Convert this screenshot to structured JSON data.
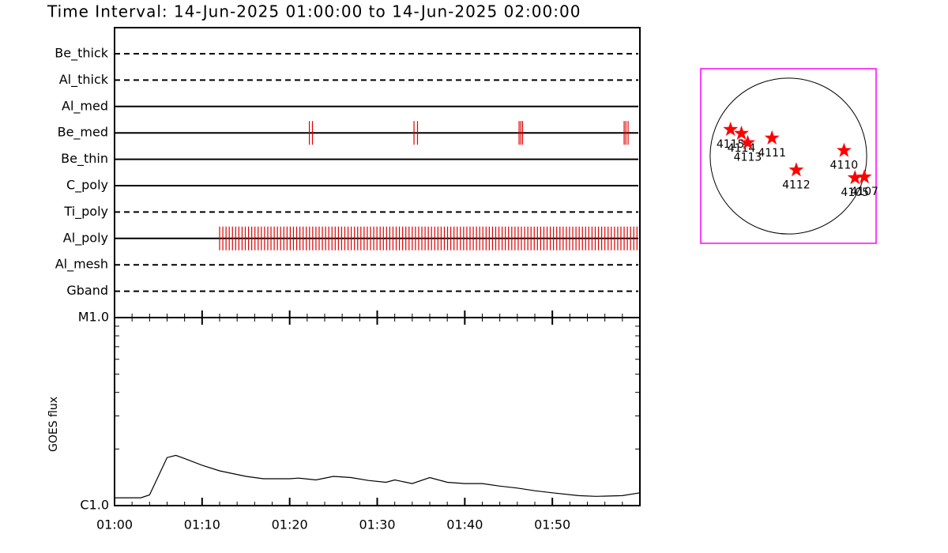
{
  "chart_data": [
    {
      "type": "timeline",
      "title": "Time Interval: 14-Jun-2025 01:00:00 to 14-Jun-2025 02:00:00",
      "xlim": [
        "01:00",
        "02:00"
      ],
      "event_color": "#dd0000",
      "rows": [
        {
          "name": "Be_thick",
          "line": "dashed"
        },
        {
          "name": "Al_thick",
          "line": "dashed"
        },
        {
          "name": "Al_med",
          "line": "solid"
        },
        {
          "name": "Be_med",
          "line": "solid",
          "events": [
            "01:22:15",
            "01:22:36",
            "01:34:12",
            "01:34:36",
            "01:46:12",
            "01:46:24",
            "01:46:36",
            "01:58:12",
            "01:58:24",
            "01:58:39"
          ]
        },
        {
          "name": "Be_thin",
          "line": "solid"
        },
        {
          "name": "C_poly",
          "line": "solid"
        },
        {
          "name": "Ti_poly",
          "line": "dashed"
        },
        {
          "name": "Al_poly",
          "line": "solid",
          "events": [
            "01:12:00",
            "01:12:22",
            "01:12:44",
            "01:13:06",
            "01:13:28",
            "01:13:50",
            "01:14:12",
            "01:14:34",
            "01:14:56",
            "01:15:18",
            "01:15:40",
            "01:16:02",
            "01:16:24",
            "01:16:46",
            "01:17:08",
            "01:17:30",
            "01:17:52",
            "01:18:14",
            "01:18:36",
            "01:18:58",
            "01:19:20",
            "01:19:42",
            "01:20:04",
            "01:20:26",
            "01:20:48",
            "01:21:10",
            "01:21:32",
            "01:21:54",
            "01:22:16",
            "01:22:38",
            "01:23:00",
            "01:23:22",
            "01:23:44",
            "01:24:06",
            "01:24:28",
            "01:24:50",
            "01:25:12",
            "01:25:34",
            "01:25:56",
            "01:26:18",
            "01:26:40",
            "01:27:02",
            "01:27:24",
            "01:27:46",
            "01:28:08",
            "01:28:30",
            "01:28:52",
            "01:29:14",
            "01:29:36",
            "01:29:58",
            "01:30:20",
            "01:30:42",
            "01:31:04",
            "01:31:26",
            "01:31:48",
            "01:32:10",
            "01:32:32",
            "01:32:54",
            "01:33:16",
            "01:33:38",
            "01:34:00",
            "01:34:22",
            "01:34:44",
            "01:35:06",
            "01:35:28",
            "01:35:50",
            "01:36:12",
            "01:36:34",
            "01:36:56",
            "01:37:18",
            "01:37:40",
            "01:38:02",
            "01:38:24",
            "01:38:46",
            "01:39:08",
            "01:39:30",
            "01:39:52",
            "01:40:14",
            "01:40:36",
            "01:40:58",
            "01:41:20",
            "01:41:42",
            "01:42:04",
            "01:42:26",
            "01:42:48",
            "01:43:10",
            "01:43:32",
            "01:43:54",
            "01:44:16",
            "01:44:38",
            "01:45:00",
            "01:45:22",
            "01:45:44",
            "01:46:06",
            "01:46:28",
            "01:46:50",
            "01:47:12",
            "01:47:34",
            "01:47:56",
            "01:48:18",
            "01:48:40",
            "01:49:02",
            "01:49:24",
            "01:49:46",
            "01:50:08",
            "01:50:30",
            "01:50:52",
            "01:51:14",
            "01:51:36",
            "01:51:58",
            "01:52:20",
            "01:52:42",
            "01:53:04",
            "01:53:26",
            "01:53:48",
            "01:54:10",
            "01:54:32",
            "01:54:54",
            "01:55:16",
            "01:55:38",
            "01:56:00",
            "01:56:22",
            "01:56:44",
            "01:57:06",
            "01:57:28",
            "01:57:50",
            "01:58:12",
            "01:58:34",
            "01:58:56",
            "01:59:18",
            "01:59:40"
          ]
        },
        {
          "name": "Al_mesh",
          "line": "dashed"
        },
        {
          "name": "Gband",
          "line": "dashed"
        }
      ]
    },
    {
      "type": "line",
      "ylabel": "GOES flux",
      "x": [
        "01:00",
        "01:03",
        "01:04",
        "01:06",
        "01:07",
        "01:08",
        "01:10",
        "01:12",
        "01:15",
        "01:17",
        "01:20",
        "01:21",
        "01:23",
        "01:25",
        "01:27",
        "01:29",
        "01:31",
        "01:32",
        "01:34",
        "01:36",
        "01:38",
        "01:40",
        "01:42",
        "01:44",
        "01:46",
        "01:48",
        "01:50",
        "01:53",
        "01:55",
        "01:58",
        "02:00"
      ],
      "values": [
        1.1e-06,
        1.1e-06,
        1.14e-06,
        1.8e-06,
        1.85e-06,
        1.78e-06,
        1.64e-06,
        1.53e-06,
        1.43e-06,
        1.39e-06,
        1.39e-06,
        1.4e-06,
        1.37e-06,
        1.43e-06,
        1.41e-06,
        1.36e-06,
        1.33e-06,
        1.37e-06,
        1.31e-06,
        1.41e-06,
        1.33e-06,
        1.31e-06,
        1.31e-06,
        1.27e-06,
        1.24e-06,
        1.2e-06,
        1.17e-06,
        1.13e-06,
        1.12e-06,
        1.13e-06,
        1.17e-06
      ],
      "color": "#000000",
      "xlim": [
        "01:00",
        "02:00"
      ],
      "xticks": [
        "01:00",
        "01:10",
        "01:20",
        "01:30",
        "01:40",
        "01:50"
      ],
      "ylim": [
        1e-06,
        1e-05
      ],
      "yticks": [
        {
          "value": 1e-06,
          "label": "C1.0"
        },
        {
          "value": 1e-05,
          "label": "M1.0"
        }
      ],
      "log_y": true
    },
    {
      "type": "disk",
      "xlim": [
        -1.12,
        1.12
      ],
      "ylim": [
        -1.12,
        1.12
      ],
      "radius": 1,
      "frame_color": "#ff00ff",
      "color": "#ff0000",
      "points": [
        {
          "label": "4115",
          "x": -0.74,
          "y": 0.34
        },
        {
          "label": "4114",
          "x": -0.6,
          "y": 0.29
        },
        {
          "label": "4113",
          "x": -0.52,
          "y": 0.17
        },
        {
          "label": "4111",
          "x": -0.21,
          "y": 0.23
        },
        {
          "label": "4112",
          "x": 0.1,
          "y": -0.18
        },
        {
          "label": "4110",
          "x": 0.71,
          "y": 0.07
        },
        {
          "label": "4105",
          "x": 0.85,
          "y": -0.28
        },
        {
          "label": "4107",
          "x": 0.97,
          "y": -0.27
        }
      ]
    }
  ]
}
